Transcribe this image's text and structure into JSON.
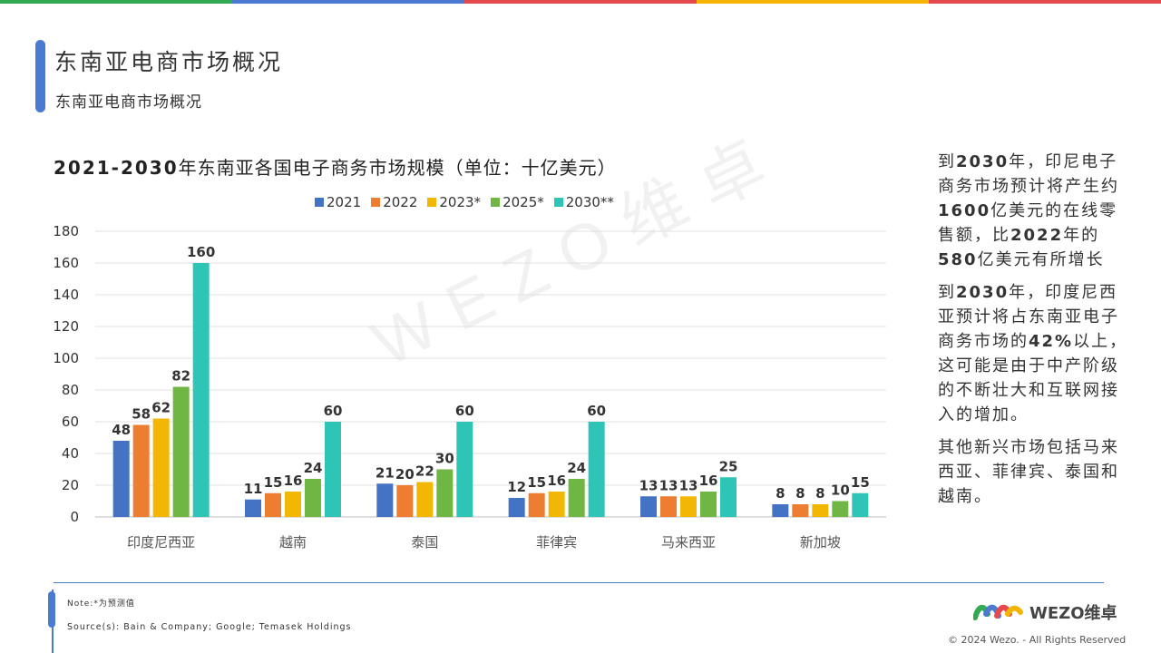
{
  "header": {
    "title": "东南亚电商市场概况",
    "subtitle": "东南亚电商市场概况",
    "topbar_colors": [
      "#34a853",
      "#4a7bd0",
      "#e5484d",
      "#f4b400",
      "#e5484d"
    ]
  },
  "chart_data": {
    "type": "bar",
    "title_prefix": "2021-2030",
    "title_rest": "年东南亚各国电子商务市场规模（单位：十亿美元）",
    "categories": [
      "印度尼西亚",
      "越南",
      "泰国",
      "菲律宾",
      "马来西亚",
      "新加坡"
    ],
    "series": [
      {
        "name": "2021",
        "color": "#4472c4",
        "values": [
          48,
          11,
          21,
          12,
          13,
          8
        ]
      },
      {
        "name": "2022",
        "color": "#ed7d31",
        "values": [
          58,
          15,
          20,
          15,
          13,
          8
        ]
      },
      {
        "name": "2023*",
        "color": "#f2b705",
        "values": [
          62,
          16,
          22,
          16,
          13,
          8
        ]
      },
      {
        "name": "2025*",
        "color": "#70b644",
        "values": [
          82,
          24,
          30,
          24,
          16,
          10
        ]
      },
      {
        "name": "2030**",
        "color": "#2ec4b6",
        "values": [
          160,
          60,
          60,
          60,
          25,
          15
        ]
      }
    ],
    "ylim": [
      0,
      180
    ],
    "yticks": [
      0,
      20,
      40,
      60,
      80,
      100,
      120,
      140,
      160,
      180
    ],
    "grid": true,
    "legend_position": "top-center"
  },
  "sidebar": {
    "p1": {
      "a": "到",
      "b": "2030",
      "c": "年，印尼电子商务市场预计将产生约",
      "d": "1600",
      "e": "亿美元的在线零售额，比",
      "f": "2022",
      "g": "年的",
      "h": "580",
      "i": "亿美元有所增长"
    },
    "p2": {
      "a": "到",
      "b": "2030",
      "c": "年，印度尼西亚预计将占东南亚电子商务市场的",
      "d": "42%",
      "e": "以上，这可能是由于中产阶级的不断壮大和互联网接入的增加。"
    },
    "p3": "其他新兴市场包括马来西亚、菲律宾、泰国和越南。"
  },
  "footer": {
    "note": "Note:*为预测值",
    "source": "Source(s): Bain & Company; Google; Temasek Holdings",
    "logo_text": "WEZO维卓",
    "copyright": "© 2024 Wezo. - All Rights Reserved"
  },
  "watermark": "WEZO维卓"
}
